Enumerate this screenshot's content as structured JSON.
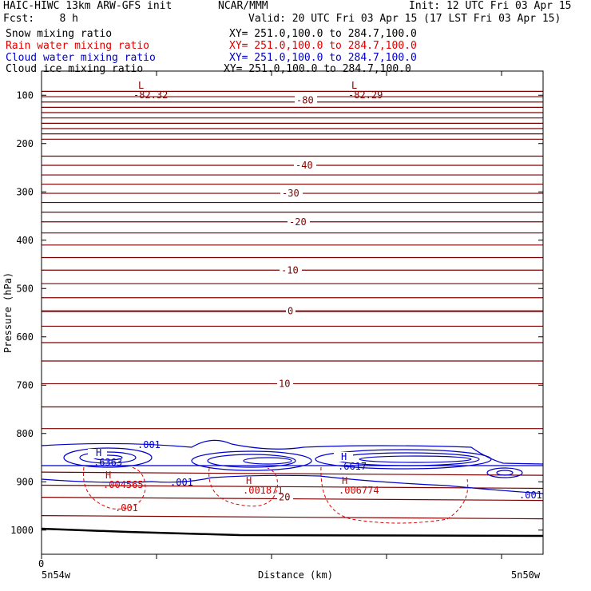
{
  "header": {
    "title_left": "HAIC-HIWC 13km ARW-GFS init",
    "org": "NCAR/MMM",
    "init": "Init: 12 UTC Fri 03 Apr 15",
    "fcst": "Fcst:    8 h",
    "valid": "Valid: 20 UTC Fri 03 Apr 15 (17 LST Fri 03 Apr 15)"
  },
  "fields": [
    {
      "label": "Snow mixing ratio",
      "xy": "XY= 251.0,100.0 to 284.7,100.0",
      "color": "#000000"
    },
    {
      "label": "Rain water mixing ratio",
      "xy": "XY= 251.0,100.0 to 284.7,100.0",
      "color": "#dd0000"
    },
    {
      "label": "Cloud water mixing ratio",
      "xy": "XY= 251.0,100.0 to 284.7,100.0",
      "color": "#0000cc"
    },
    {
      "label": "Cloud ice mixing ratio",
      "xy": "XY= 251.0,100.0 to 284.7,100.0",
      "color": "#000000"
    }
  ],
  "chart_data": {
    "type": "contour",
    "xlabel": "Distance (km)",
    "ylabel": "Pressure (hPa)",
    "x_start_label": "5n54w",
    "x_end_label": "5n50w",
    "x_origin_tick": "0",
    "y_ticks": [
      100,
      200,
      300,
      400,
      500,
      600,
      700,
      800,
      900,
      1000
    ],
    "ylim": [
      1050,
      50
    ],
    "temperature_contours": {
      "color": "#800000",
      "labels": [
        {
          "value": "-80",
          "p": 110
        },
        {
          "value": "-40",
          "p": 245
        },
        {
          "value": "-30",
          "p": 303
        },
        {
          "value": "-20",
          "p": 362
        },
        {
          "value": "-10",
          "p": 462
        },
        {
          "value": "0",
          "p": 547
        },
        {
          "value": "10",
          "p": 697
        },
        {
          "value": "20",
          "p": 932
        }
      ]
    },
    "extrema": [
      {
        "kind": "L",
        "value": "-82.32",
        "color": "#800000"
      },
      {
        "kind": "L",
        "value": "-82.29",
        "color": "#800000"
      },
      {
        "kind": "H",
        "value": ".6363",
        "color": "#0000cc"
      },
      {
        "kind": "H",
        "value": ".6617",
        "color": "#0000cc"
      },
      {
        "kind": "H",
        "value": ".004565",
        "color": "#dd0000"
      },
      {
        "kind": "H",
        "value": ".001871",
        "color": "#dd0000"
      },
      {
        "kind": "H",
        "value": ".006774",
        "color": "#dd0000"
      }
    ],
    "contour_labels": [
      {
        "value": ".001",
        "color": "#0000cc"
      },
      {
        "value": ".001",
        "color": "#0000cc"
      },
      {
        "value": ".001",
        "color": "#0000cc"
      },
      {
        "value": ".001",
        "color": "#dd0000"
      }
    ]
  }
}
